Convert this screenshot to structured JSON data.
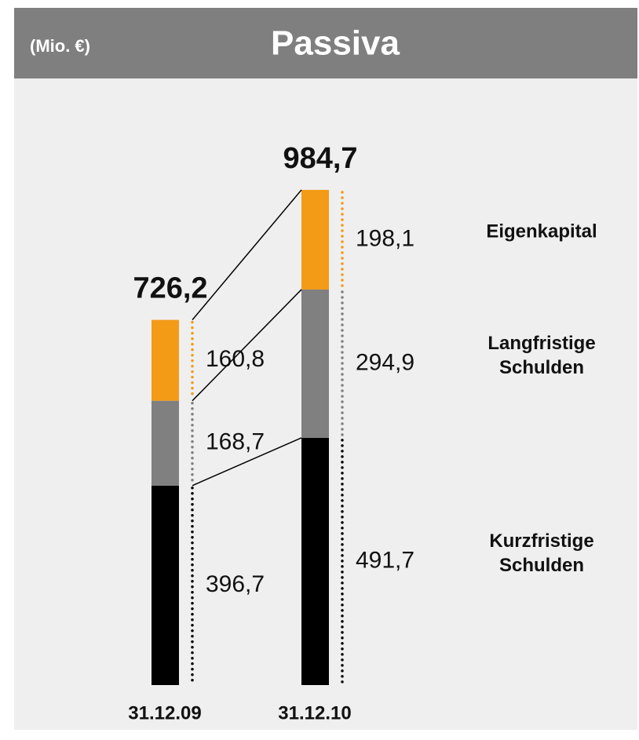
{
  "chart_data": {
    "type": "stacked_bar",
    "title": "Passiva",
    "unit_label": "(Mio. €)",
    "categories": [
      "31.12.09",
      "31.12.10"
    ],
    "series": [
      {
        "name": "Kurzfristige Schulden",
        "color": "#000000",
        "values": [
          396.7,
          491.7
        ],
        "value_labels": [
          "396,7",
          "491,7"
        ]
      },
      {
        "name": "Langfristige Schulden",
        "color": "#808080",
        "values": [
          168.7,
          294.9
        ],
        "value_labels": [
          "168,7",
          "294,9"
        ]
      },
      {
        "name": "Eigenkapital",
        "color": "#f39a17",
        "values": [
          160.8,
          198.1
        ],
        "value_labels": [
          "160,8",
          "198,1"
        ]
      }
    ],
    "totals": [
      726.2,
      984.7
    ],
    "total_labels": [
      "726,2",
      "984,7"
    ]
  }
}
